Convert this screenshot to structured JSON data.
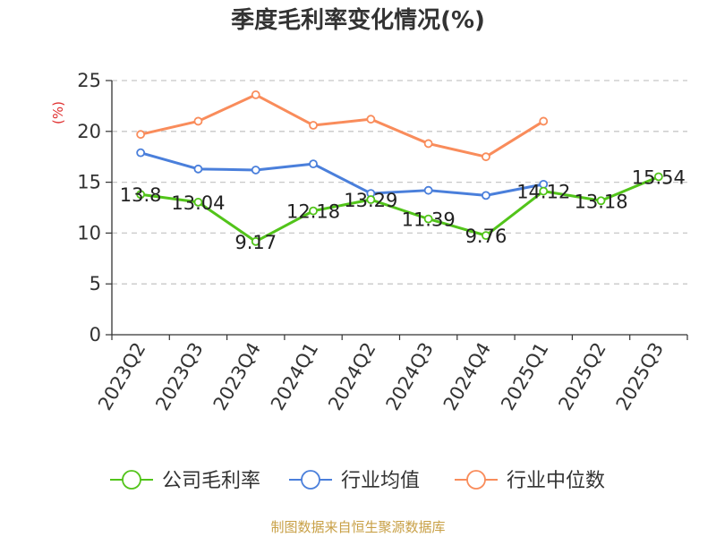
{
  "chart_data": {
    "type": "line",
    "title": "季度毛利率变化情况(%)",
    "ylabel": "(%)",
    "xlabel": "",
    "categories": [
      "2023Q2",
      "2023Q3",
      "2023Q4",
      "2024Q1",
      "2024Q2",
      "2024Q3",
      "2024Q4",
      "2025Q1",
      "2025Q2",
      "2025Q3"
    ],
    "ylim": [
      0,
      25
    ],
    "yticks": [
      0,
      5,
      10,
      15,
      20,
      25
    ],
    "grid": "horizontal-dashed",
    "legend_position": "bottom",
    "series": [
      {
        "name": "公司毛利率",
        "color": "#52c41a",
        "values": [
          13.8,
          13.04,
          9.17,
          12.18,
          13.29,
          11.39,
          9.76,
          14.12,
          13.18,
          15.54
        ],
        "labels": [
          "13.8",
          "13.04",
          "9.17",
          "12.18",
          "13.29",
          "11.39",
          "9.76",
          "14.12",
          "13.18",
          "15.54"
        ],
        "show_labels": true
      },
      {
        "name": "行业均值",
        "color": "#4a7fdb",
        "values": [
          17.9,
          16.3,
          16.2,
          16.8,
          13.9,
          14.2,
          13.7,
          14.8,
          null,
          null
        ],
        "show_labels": false
      },
      {
        "name": "行业中位数",
        "color": "#f98c5b",
        "values": [
          19.7,
          21.0,
          23.6,
          20.6,
          21.2,
          18.8,
          17.5,
          21.0,
          null,
          null
        ],
        "show_labels": false
      }
    ]
  },
  "source_text": "制图数据来自恒生聚源数据库"
}
